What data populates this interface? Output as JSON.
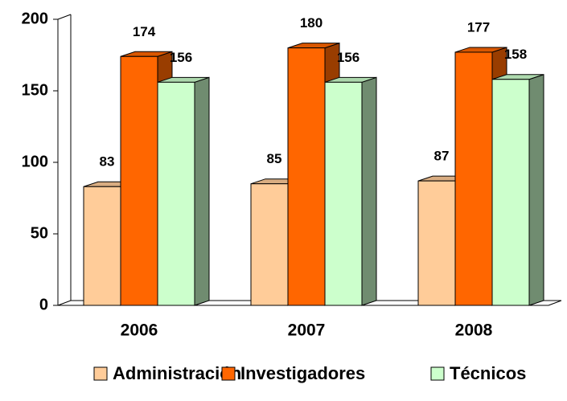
{
  "chart_data": {
    "type": "bar3d",
    "categories": [
      "2006",
      "2007",
      "2008"
    ],
    "series": [
      {
        "name": "Administración",
        "color": "#FFCC99",
        "values": [
          83,
          85,
          87
        ]
      },
      {
        "name": "Investigadores",
        "color": "#FF6600",
        "values": [
          174,
          180,
          177
        ]
      },
      {
        "name": "Técnicos",
        "color": "#CCFFCC",
        "values": [
          156,
          156,
          158
        ]
      }
    ],
    "ylim": [
      0,
      200
    ],
    "yticks": [
      0,
      50,
      100,
      150,
      200
    ],
    "legend": "bottom"
  }
}
